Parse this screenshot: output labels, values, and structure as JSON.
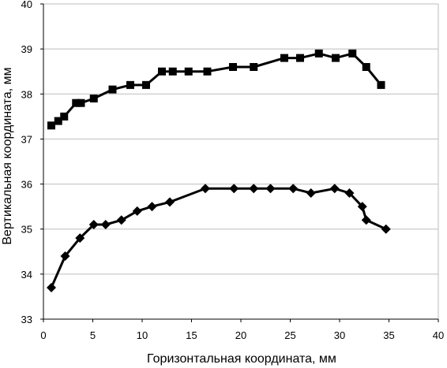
{
  "chart_data": {
    "type": "line",
    "title": "",
    "xlabel": "Горизонтальная координата, мм",
    "ylabel": "Вертикальная координата, мм",
    "xlim": [
      0,
      40
    ],
    "ylim": [
      33,
      40
    ],
    "xticks": [
      "0",
      "5",
      "10",
      "15",
      "20",
      "25",
      "30",
      "35",
      "40"
    ],
    "yticks": [
      "33",
      "34",
      "35",
      "36",
      "37",
      "38",
      "39",
      "40"
    ],
    "grid": "horizontal",
    "legend": "none",
    "series": [
      {
        "marker": "square",
        "color": "#000000",
        "points": [
          [
            0.8,
            37.3
          ],
          [
            1.5,
            37.4
          ],
          [
            2.1,
            37.5
          ],
          [
            3.3,
            37.8
          ],
          [
            3.8,
            37.8
          ],
          [
            5.1,
            37.9
          ],
          [
            7.0,
            38.1
          ],
          [
            8.8,
            38.2
          ],
          [
            10.4,
            38.2
          ],
          [
            12.0,
            38.5
          ],
          [
            13.1,
            38.5
          ],
          [
            14.7,
            38.5
          ],
          [
            16.6,
            38.5
          ],
          [
            19.2,
            38.6
          ],
          [
            21.3,
            38.6
          ],
          [
            24.4,
            38.8
          ],
          [
            26.0,
            38.8
          ],
          [
            27.9,
            38.9
          ],
          [
            29.6,
            38.8
          ],
          [
            31.3,
            38.9
          ],
          [
            32.7,
            38.6
          ],
          [
            34.2,
            38.2
          ]
        ]
      },
      {
        "marker": "diamond",
        "color": "#000000",
        "points": [
          [
            0.8,
            33.7
          ],
          [
            2.2,
            34.4
          ],
          [
            3.7,
            34.8
          ],
          [
            5.1,
            35.1
          ],
          [
            6.3,
            35.1
          ],
          [
            7.9,
            35.2
          ],
          [
            9.5,
            35.4
          ],
          [
            11.0,
            35.5
          ],
          [
            12.8,
            35.6
          ],
          [
            16.4,
            35.9
          ],
          [
            19.3,
            35.9
          ],
          [
            21.3,
            35.9
          ],
          [
            23.0,
            35.9
          ],
          [
            25.3,
            35.9
          ],
          [
            27.1,
            35.8
          ],
          [
            29.5,
            35.9
          ],
          [
            31.0,
            35.8
          ],
          [
            32.3,
            35.5
          ],
          [
            32.7,
            35.2
          ],
          [
            34.7,
            35.0
          ]
        ]
      }
    ]
  }
}
